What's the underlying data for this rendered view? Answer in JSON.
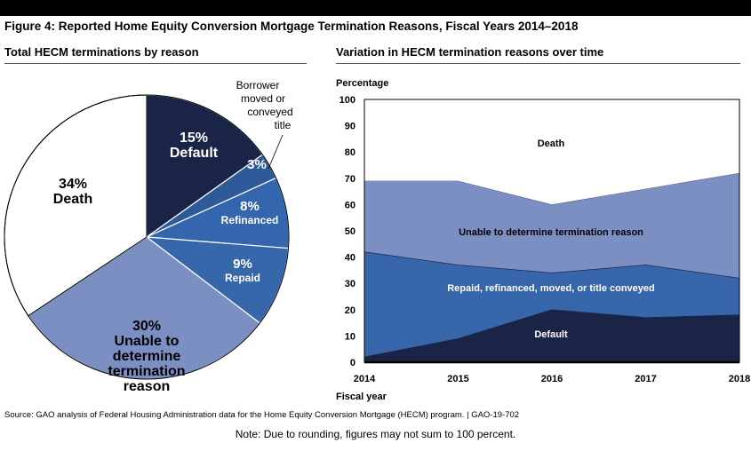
{
  "figure_title": "Figure 4: Reported Home Equity Conversion Mortgage Termination Reasons, Fiscal Years 2014–2018",
  "source": "Source: GAO analysis of Federal Housing Administration data for the Home Equity Conversion Mortgage (HECM) program.  |  GAO-19-702",
  "note": "Note: Due to rounding, figures may not sum to 100 percent.",
  "colors": {
    "default": "#1a2447",
    "moved": "#2e5a9a",
    "refinanced": "#3466ad",
    "repaid": "#3567aa",
    "unable": "#7c8fc2",
    "death": "#ffffff",
    "repaid_group": "#3766aa"
  },
  "chart_data": [
    {
      "type": "pie",
      "title": "Total HECM terminations by reason",
      "slices": [
        {
          "key": "default",
          "pct": "15%",
          "label": "Default",
          "value": 15
        },
        {
          "key": "moved",
          "pct": "3%",
          "label": "",
          "value": 3,
          "callout": [
            "Borrower",
            "moved or",
            "conveyed",
            "title"
          ]
        },
        {
          "key": "refinanced",
          "pct": "8%",
          "label": "Refinanced",
          "value": 8
        },
        {
          "key": "repaid",
          "pct": "9%",
          "label": "Repaid",
          "value": 9
        },
        {
          "key": "unable",
          "pct": "30%",
          "label": "Unable to\ndetermine\ntermination\nreason",
          "value": 30
        },
        {
          "key": "death",
          "pct": "34%",
          "label": "Death",
          "value": 34
        }
      ]
    },
    {
      "type": "area",
      "stacked": true,
      "title": "Variation in HECM termination reasons over time",
      "ylabel": "Percentage",
      "xlabel": "Fiscal year",
      "x": [
        "2014",
        "2015",
        "2016",
        "2017",
        "2018"
      ],
      "ylim": [
        0,
        100
      ],
      "yticks": [
        0,
        10,
        20,
        30,
        40,
        50,
        60,
        70,
        80,
        90,
        100
      ],
      "series": [
        {
          "key": "default",
          "name": "Default",
          "values": [
            2,
            9,
            20,
            17,
            18
          ]
        },
        {
          "key": "repaid_group",
          "name": "Repaid, refinanced, moved, or title conveyed",
          "values": [
            40,
            28,
            14,
            20,
            14
          ]
        },
        {
          "key": "unable",
          "name": "Unable to determine termination reason",
          "values": [
            27,
            32,
            26,
            29,
            40
          ]
        },
        {
          "key": "death",
          "name": "Death",
          "values": [
            31,
            31,
            40,
            34,
            28
          ]
        }
      ]
    }
  ]
}
